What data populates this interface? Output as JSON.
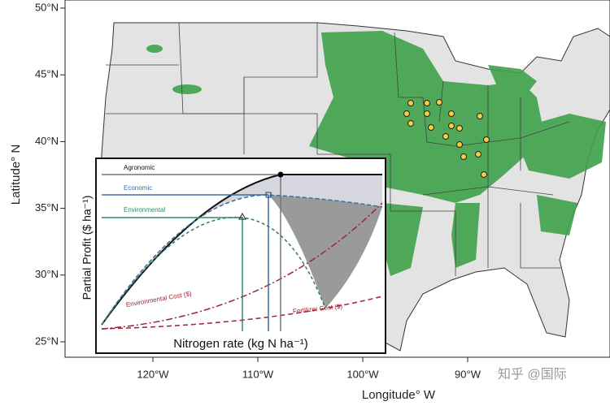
{
  "map": {
    "lat_ticks": [
      {
        "value": 50,
        "label": "50°N"
      },
      {
        "value": 45,
        "label": "45°N"
      },
      {
        "value": 40,
        "label": "40°N"
      },
      {
        "value": 35,
        "label": "35°N"
      },
      {
        "value": 30,
        "label": "30°N"
      },
      {
        "value": 25,
        "label": "25°N"
      }
    ],
    "lon_ticks": [
      {
        "value": -120,
        "label": "120°W"
      },
      {
        "value": -110,
        "label": "110°W"
      },
      {
        "value": -100,
        "label": "100°W"
      },
      {
        "value": -90,
        "label": "90°W"
      }
    ],
    "x_label": "Longitude° W",
    "y_label": "Latitude° N"
  },
  "inset": {
    "y_label": "Partial Profit ($ ha⁻¹)",
    "x_label": "Nitrogen rate (kg N ha⁻¹)",
    "labels": [
      "Agronomic",
      "Economic",
      "Environmental"
    ],
    "environmental_cost": "Environmental Cost ($)",
    "fertilizer_cost": "Fertilizer Cost ($)"
  },
  "watermark": "知乎 @国际"
}
